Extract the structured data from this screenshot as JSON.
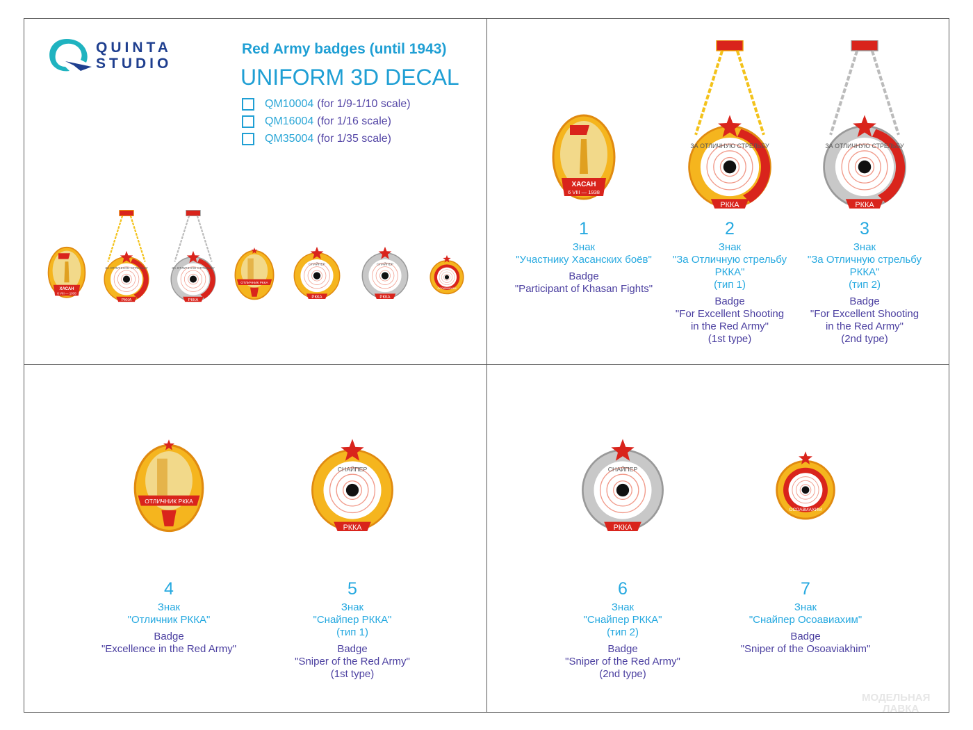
{
  "brand": {
    "line1": "QUINTA",
    "line2": "STUDIO"
  },
  "header": {
    "title": "Red Army badges (until 1943)",
    "subtitle": "UNIFORM 3D DECAL"
  },
  "options": [
    {
      "code": "QM10004",
      "scale": "(for 1/9-1/10 scale)"
    },
    {
      "code": "QM16004",
      "scale": "(for 1/16 scale)"
    },
    {
      "code": "QM35004",
      "scale": "(for 1/35 scale)"
    }
  ],
  "badges": [
    {
      "number": "1",
      "ru": [
        "Знак",
        "\"Участнику Хасанских боёв\""
      ],
      "en": [
        "Badge",
        "\"Participant of Khasan Fights\""
      ],
      "kind": "khasan"
    },
    {
      "number": "2",
      "ru": [
        "Знак",
        "\"За Отличную стрельбу",
        "РККА\"",
        "(тип 1)"
      ],
      "en": [
        "Badge",
        "\"For Excellent Shooting",
        "in the Red Army\"",
        "(1st type)"
      ],
      "kind": "shooting-gold"
    },
    {
      "number": "3",
      "ru": [
        "Знак",
        "\"За Отличную стрельбу",
        "РККА\"",
        "(тип 2)"
      ],
      "en": [
        "Badge",
        "\"For Excellent Shooting",
        "in the Red Army\"",
        "(2nd type)"
      ],
      "kind": "shooting-silver"
    },
    {
      "number": "4",
      "ru": [
        "Знак",
        "\"Отличник РККА\""
      ],
      "en": [
        "Badge",
        "\"Excellence in the Red Army\""
      ],
      "kind": "excellence"
    },
    {
      "number": "5",
      "ru": [
        "Знак",
        "\"Снайпер РККА\"",
        "(тип 1)"
      ],
      "en": [
        "Badge",
        "\"Sniper of the Red Army\"",
        "(1st type)"
      ],
      "kind": "sniper-gold"
    },
    {
      "number": "6",
      "ru": [
        "Знак",
        "\"Снайпер РККА\"",
        "(тип 2)"
      ],
      "en": [
        "Badge",
        "\"Sniper of the Red Army\"",
        "(2nd type)"
      ],
      "kind": "sniper-silver"
    },
    {
      "number": "7",
      "ru": [
        "Знак",
        "\"Снайпер Осоавиахим\""
      ],
      "en": [
        "Badge",
        "\"Sniper of the Osoaviakhim\""
      ],
      "kind": "osoaviakhim"
    }
  ],
  "inscriptions": {
    "khasan": "ХАСАН",
    "khasan_date": "6 VIII — 1938",
    "rkka": "РККА",
    "sniper": "СНАЙПЕР",
    "excellence": "ОТЛИЧНИК РККА",
    "shooting": "ЗА ОТЛИЧНУЮ СТРЕЛЬБУ",
    "osoaviakhim": "ОСОАВИАХИМ"
  },
  "watermark": [
    "МОДЕЛЬНАЯ",
    "ЛАВКА"
  ],
  "colors": {
    "accent": "#1f9fd4",
    "purple": "#4b3fa0",
    "red": "#d9241c",
    "gold": "#f5b51e",
    "silver": "#c8c8c8"
  }
}
